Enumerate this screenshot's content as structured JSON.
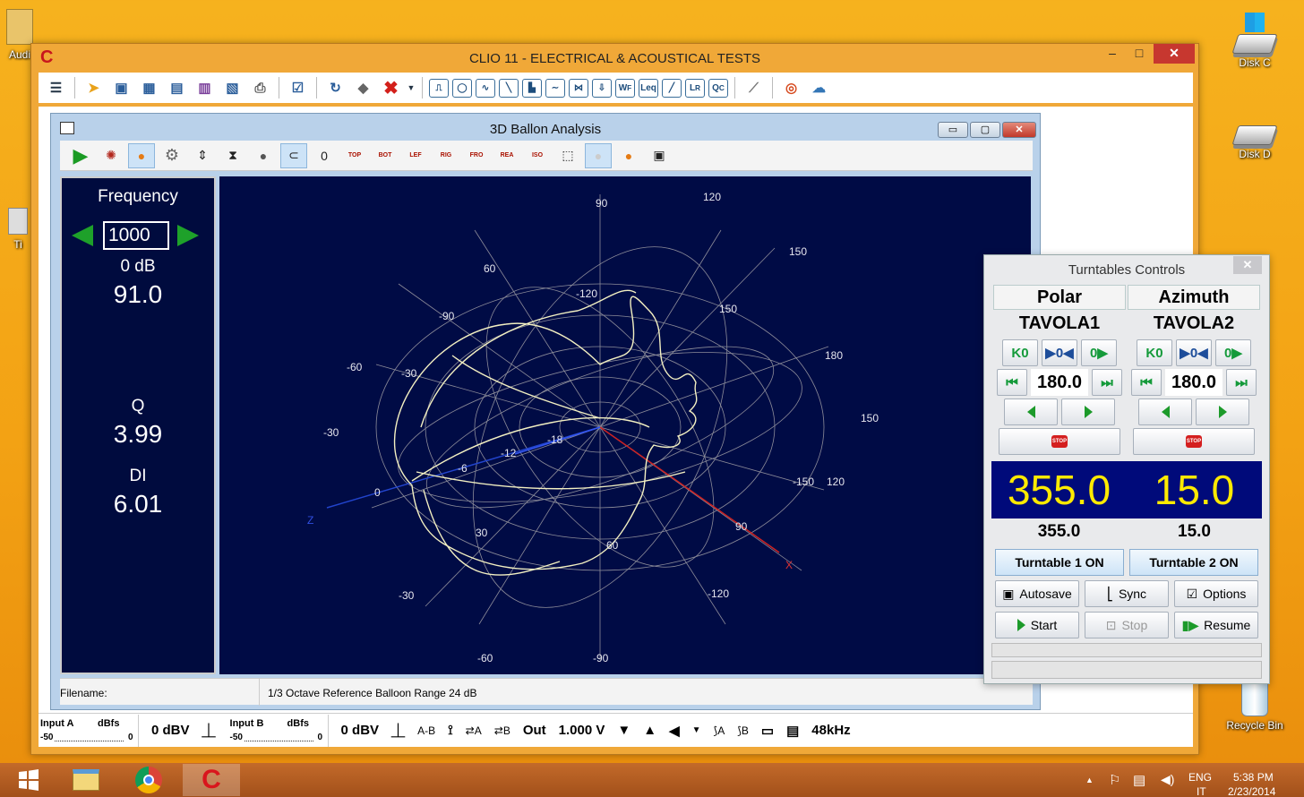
{
  "desktop": {
    "icons": [
      {
        "label": "Audi"
      },
      {
        "label": "Disk C"
      },
      {
        "label": "Disk D"
      },
      {
        "label": "Recycle Bin"
      },
      {
        "label": "Ti"
      }
    ]
  },
  "main_window": {
    "title": "CLIO 11 - ELECTRICAL & ACOUSTICAL TESTS",
    "logo": "C",
    "controls": {
      "minimize": "–",
      "maximize": "□",
      "close": "✕"
    },
    "toolbar_icons": [
      "menu-icon",
      "open-icon",
      "save-icon",
      "save-setup-icon",
      "save-as-icon",
      "export-icon",
      "calendar-icon",
      "print-icon",
      "autoscale-icon",
      "refresh-icon",
      "eraser-icon",
      "delete-icon",
      "mls-icon",
      "fft-icon",
      "sinusoidal-icon",
      "multimeter-icon",
      "thd-icon",
      "waterfall-icon",
      "wow-flutter-icon",
      "leq-icon",
      "wf-icon",
      "leq-meter-icon",
      "linearity-icon",
      "lr-icon",
      "qc-icon",
      "ruler-icon",
      "help-icon",
      "cloud-icon"
    ],
    "toolbar_boxes": [
      "MLS",
      "FFT",
      "Sin",
      "Mtr",
      "ThD",
      "Wf",
      "WF",
      "Leq",
      "Lin",
      "LR",
      "QC"
    ]
  },
  "balloon_window": {
    "title": "3D Ballon Analysis",
    "toolbar": {
      "view_labels": [
        "TOP",
        "BOT",
        "LEF",
        "RIG",
        "FRO",
        "REA",
        "ISO"
      ]
    },
    "left_panel": {
      "frequency_label": "Frequency",
      "frequency_value": "1000",
      "db_label": "0 dB",
      "db_value": "91.0",
      "q_label": "Q",
      "q_value": "3.99",
      "di_label": "DI",
      "di_value": "6.01"
    },
    "plot_labels": [
      "90",
      "120",
      "150",
      "180",
      "150",
      "120",
      "60",
      "-120",
      "150",
      "-90",
      "-60",
      "-30",
      "-30",
      "-18",
      "-12",
      "-6",
      "0",
      "-150",
      "90",
      "30",
      "60",
      "-30",
      "-120",
      "-60",
      "-90",
      "Z",
      "X"
    ],
    "status": {
      "filename_label": "Filename:",
      "info": "1/3 Octave  Reference Balloon Range 24 dB"
    }
  },
  "bottom_strip": {
    "input_a_label": "Input A",
    "input_a_unit": "dBfs",
    "scale_min": "-50",
    "scale_max": "0",
    "input_a_level": "0 dBV",
    "input_b_label": "Input B",
    "input_b_unit": "dBfs",
    "input_b_level": "0 dBV",
    "a_minus_b": "A-B",
    "ch_a": "A",
    "ch_b": "B",
    "out_label": "Out",
    "out_value": "1.000 V",
    "sample_rate": "48kHz"
  },
  "turntable_window": {
    "title": "Turntables Controls",
    "close": "✕",
    "columns": [
      {
        "header": "Polar",
        "name": "TAVOLA1",
        "position": "180.0",
        "readout": "355.0",
        "readout_small": "355.0",
        "on_label": "Turntable 1 ON"
      },
      {
        "header": "Azimuth",
        "name": "TAVOLA2",
        "position": "180.0",
        "readout": "15.0",
        "readout_small": "15.0",
        "on_label": "Turntable 2 ON"
      }
    ],
    "goto_zero": "K0",
    "center": "▶0◀",
    "goto_end": "0▶",
    "stop_text": "STOP",
    "actions": {
      "autosave": "Autosave",
      "sync": "Sync",
      "options": "Options",
      "start": "Start",
      "stop": "Stop",
      "resume": "Resume"
    }
  },
  "taskbar": {
    "lang_top": "ENG",
    "lang_bottom": "IT",
    "time": "5:38 PM",
    "date": "2/23/2014",
    "tray_icons": [
      "chevron-up-icon",
      "flag-icon",
      "network-icon",
      "volume-icon"
    ]
  }
}
